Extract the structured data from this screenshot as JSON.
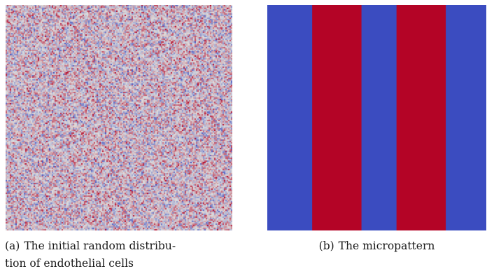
{
  "figure": {
    "panel_a": {
      "image_description": "heatmap of random noise (initial random distribution)",
      "colormap": "coolwarm",
      "colors": {
        "cold": "#3b4cc0",
        "neutral": "#dddddd",
        "warm": "#b40426"
      },
      "caption_label": "(a)",
      "caption_line1": "The initial random distribu-",
      "caption_line2": "tion of endothelial cells"
    },
    "panel_b": {
      "stripes": [
        "blue",
        "red",
        "blue",
        "red",
        "blue"
      ],
      "stripe_fractions": [
        0.205,
        0.225,
        0.16,
        0.225,
        0.185
      ],
      "colors": {
        "blue": "#3b4cc0",
        "red": "#b40426"
      },
      "caption_label": "(b)",
      "caption_text": "The micropattern"
    }
  }
}
